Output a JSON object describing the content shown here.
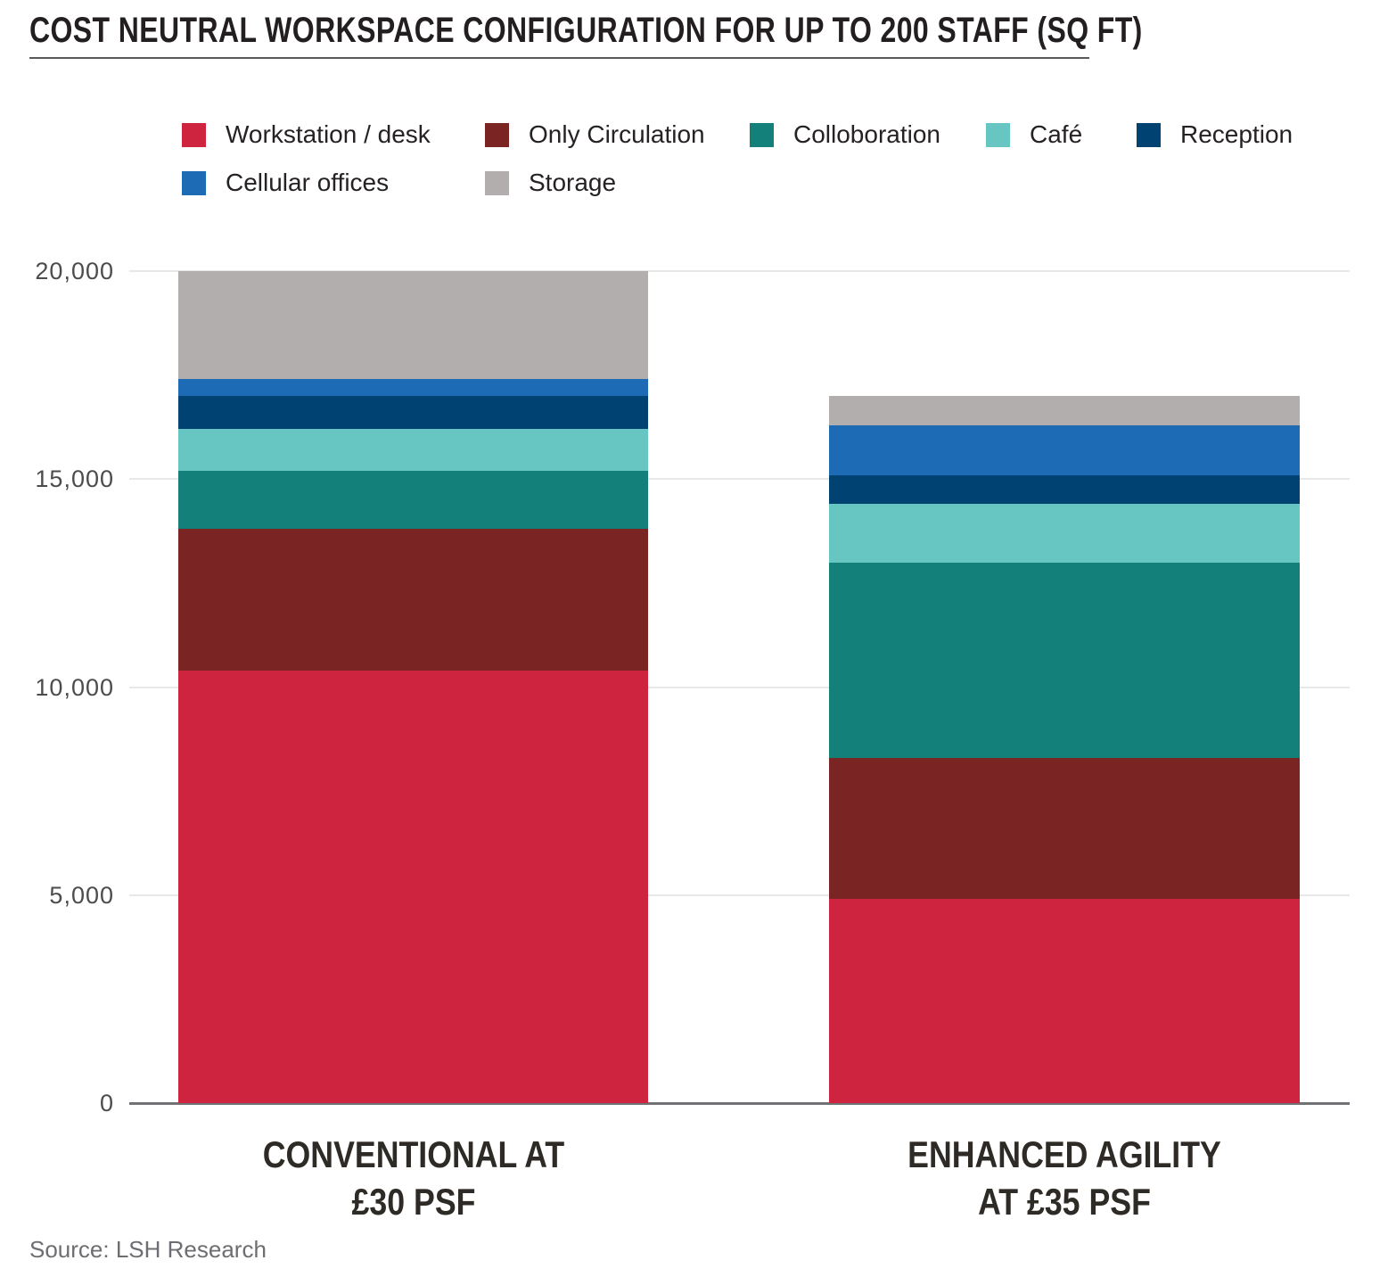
{
  "page": {
    "title": "COST NEUTRAL WORKSPACE CONFIGURATION FOR UP TO 200 STAFF (SQ FT)",
    "source": "Source: LSH Research"
  },
  "chart_data": {
    "type": "bar",
    "stacked": true,
    "title": "COST NEUTRAL WORKSPACE CONFIGURATION FOR UP TO 200 STAFF (SQ FT)",
    "unit": "sq ft",
    "categories": [
      "CONVENTIONAL AT £30 PSF",
      "ENHANCED AGILITY AT £35 PSF"
    ],
    "category_label_lines": [
      [
        "CONVENTIONAL AT",
        "£30 PSF"
      ],
      [
        "ENHANCED AGILITY",
        "AT £35 PSF"
      ]
    ],
    "series": [
      {
        "name": "Workstation / desk",
        "color": "#CF2440",
        "values": [
          10400,
          4900
        ]
      },
      {
        "name": "Only Circulation",
        "color": "#7A2523",
        "values": [
          3400,
          3400
        ]
      },
      {
        "name": "Colloboration",
        "color": "#13817A",
        "values": [
          1400,
          4700
        ]
      },
      {
        "name": "Café",
        "color": "#68C6C2",
        "values": [
          1000,
          1400
        ]
      },
      {
        "name": "Reception",
        "color": "#004272",
        "values": [
          800,
          700
        ]
      },
      {
        "name": "Cellular offices",
        "color": "#1D6BB4",
        "values": [
          400,
          1200
        ]
      },
      {
        "name": "Storage",
        "color": "#B1AEAD",
        "values": [
          2600,
          700
        ]
      }
    ],
    "totals": [
      20000,
      17000
    ],
    "stack_order": "series order is bottom-to-top",
    "ylim": [
      0,
      20000
    ],
    "yticks": [
      0,
      5000,
      10000,
      15000,
      20000
    ],
    "ytick_labels": [
      "0",
      "5,000",
      "10,000",
      "15,000",
      "20,000"
    ],
    "grid": true,
    "legend_position": "top-left, two rows"
  }
}
